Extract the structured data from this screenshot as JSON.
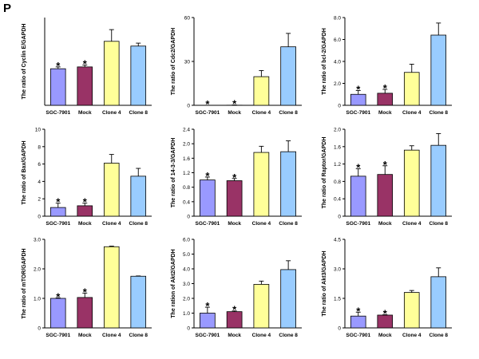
{
  "panel_label": "P",
  "colors": {
    "SGC-7901": "#9999ff",
    "Mock": "#993366",
    "Clone 4": "#ffff99",
    "Clone 8": "#99ccff"
  },
  "chart_data": [
    {
      "type": "bar",
      "ylabel": "The ratio of Cyclin E/GAPDH",
      "categories": [
        "SGC-7901",
        "Mock",
        "Clone 4",
        "Clone 8"
      ],
      "values": [
        1.0,
        1.05,
        1.75,
        1.62
      ],
      "errors": [
        0.05,
        0.05,
        0.32,
        0.08
      ],
      "ylim": [
        0,
        2.4
      ],
      "yticks": [],
      "asterisks": [
        true,
        true,
        false,
        false
      ]
    },
    {
      "type": "bar",
      "ylabel": "The ratio of Cdc2/GAPDH",
      "categories": [
        "SGC-7901",
        "Mock",
        "Clone 4",
        "Clone 8"
      ],
      "values": [
        0.0,
        0.1,
        23.5,
        48
      ],
      "errors": [
        0,
        0.2,
        5,
        11
      ],
      "ylim": [
        0,
        72
      ],
      "yticks": [
        "0",
        "30",
        "60"
      ],
      "asterisks": [
        true,
        true,
        false,
        false
      ]
    },
    {
      "type": "bar",
      "ylabel": "The ratio of bcl-2/GAPDH",
      "categories": [
        "SGC-7901",
        "Mock",
        "Clone 4",
        "Clone 8"
      ],
      "values": [
        1.0,
        1.1,
        3.0,
        6.4
      ],
      "errors": [
        0.35,
        0.35,
        0.75,
        1.1
      ],
      "ylim": [
        0,
        8.0
      ],
      "yticks": [
        "0",
        "2.0",
        "4.0",
        "6.0",
        "8.0"
      ],
      "asterisks": [
        true,
        true,
        false,
        false
      ]
    },
    {
      "type": "bar",
      "ylabel": "The ratio of Bax/GAPDH",
      "categories": [
        "SGC-7901",
        "Mock",
        "Clone 4",
        "Clone 8"
      ],
      "values": [
        1.0,
        1.2,
        6.1,
        4.6
      ],
      "errors": [
        0.5,
        0.3,
        1.0,
        0.9
      ],
      "ylim": [
        0,
        10
      ],
      "yticks": [
        "0",
        "2",
        "4",
        "6",
        "8",
        "10"
      ],
      "asterisks": [
        true,
        true,
        false,
        false
      ]
    },
    {
      "type": "bar",
      "ylabel": "The ratio of 14-3-3/GAPDH",
      "categories": [
        "SGC-7901",
        "Mock",
        "Clone 4",
        "Clone 8"
      ],
      "values": [
        1.0,
        0.98,
        1.76,
        1.78
      ],
      "errors": [
        0.08,
        0.06,
        0.17,
        0.3
      ],
      "ylim": [
        0,
        2.4
      ],
      "yticks": [
        "0",
        "0.4",
        "0.8",
        "1.2",
        "1.6",
        "2.0",
        "2.4"
      ],
      "asterisks": [
        true,
        true,
        false,
        false
      ]
    },
    {
      "type": "bar",
      "ylabel": "The ratio of Raptor/GAPDH",
      "categories": [
        "SGC-7901",
        "Mock",
        "Clone  4",
        "Clone 8"
      ],
      "values": [
        0.92,
        0.96,
        1.52,
        1.63
      ],
      "errors": [
        0.17,
        0.2,
        0.1,
        0.27
      ],
      "ylim": [
        0,
        2.0
      ],
      "yticks": [
        "0",
        "0.4",
        "0.8",
        "1.2",
        "1.6",
        "2.0"
      ],
      "asterisks": [
        true,
        true,
        false,
        false
      ]
    },
    {
      "type": "bar",
      "ylabel": "The ratio of mTOR/GAPDH",
      "categories": [
        "SGC-7901",
        "Mock",
        "Clone 4",
        "Clone 8"
      ],
      "values": [
        1.0,
        1.03,
        2.75,
        1.75
      ],
      "errors": [
        0.02,
        0.15,
        0.02,
        0.01
      ],
      "ylim": [
        0,
        3.0
      ],
      "yticks": [
        "0",
        "1.0",
        "2.0",
        "3.0"
      ],
      "asterisks": [
        true,
        true,
        false,
        false
      ]
    },
    {
      "type": "bar",
      "ylabel": "The ration of Akt2/GAPDH",
      "categories": [
        "SGC-7901",
        "Mock",
        "Clone 4",
        "Clone 8"
      ],
      "values": [
        1.0,
        1.1,
        2.95,
        3.95
      ],
      "errors": [
        0.4,
        0.05,
        0.22,
        0.6
      ],
      "ylim": [
        0,
        6.0
      ],
      "yticks": [
        "0",
        "1.0",
        "2.0",
        "3.0",
        "4.0",
        "5.0",
        "6.0"
      ],
      "asterisks": [
        true,
        true,
        false,
        false
      ]
    },
    {
      "type": "bar",
      "ylabel": "The ratio of Akt3/GAPDH",
      "categories": [
        "SGC-7901",
        "Mock",
        "Clone 4",
        "Clone 8"
      ],
      "values": [
        0.6,
        0.65,
        1.8,
        2.6
      ],
      "errors": [
        0.2,
        0.02,
        0.1,
        0.45
      ],
      "ylim": [
        0,
        4.5
      ],
      "yticks": [
        "0",
        "1.5",
        "3.0",
        "4.5"
      ],
      "asterisks": [
        true,
        true,
        false,
        false
      ]
    }
  ]
}
